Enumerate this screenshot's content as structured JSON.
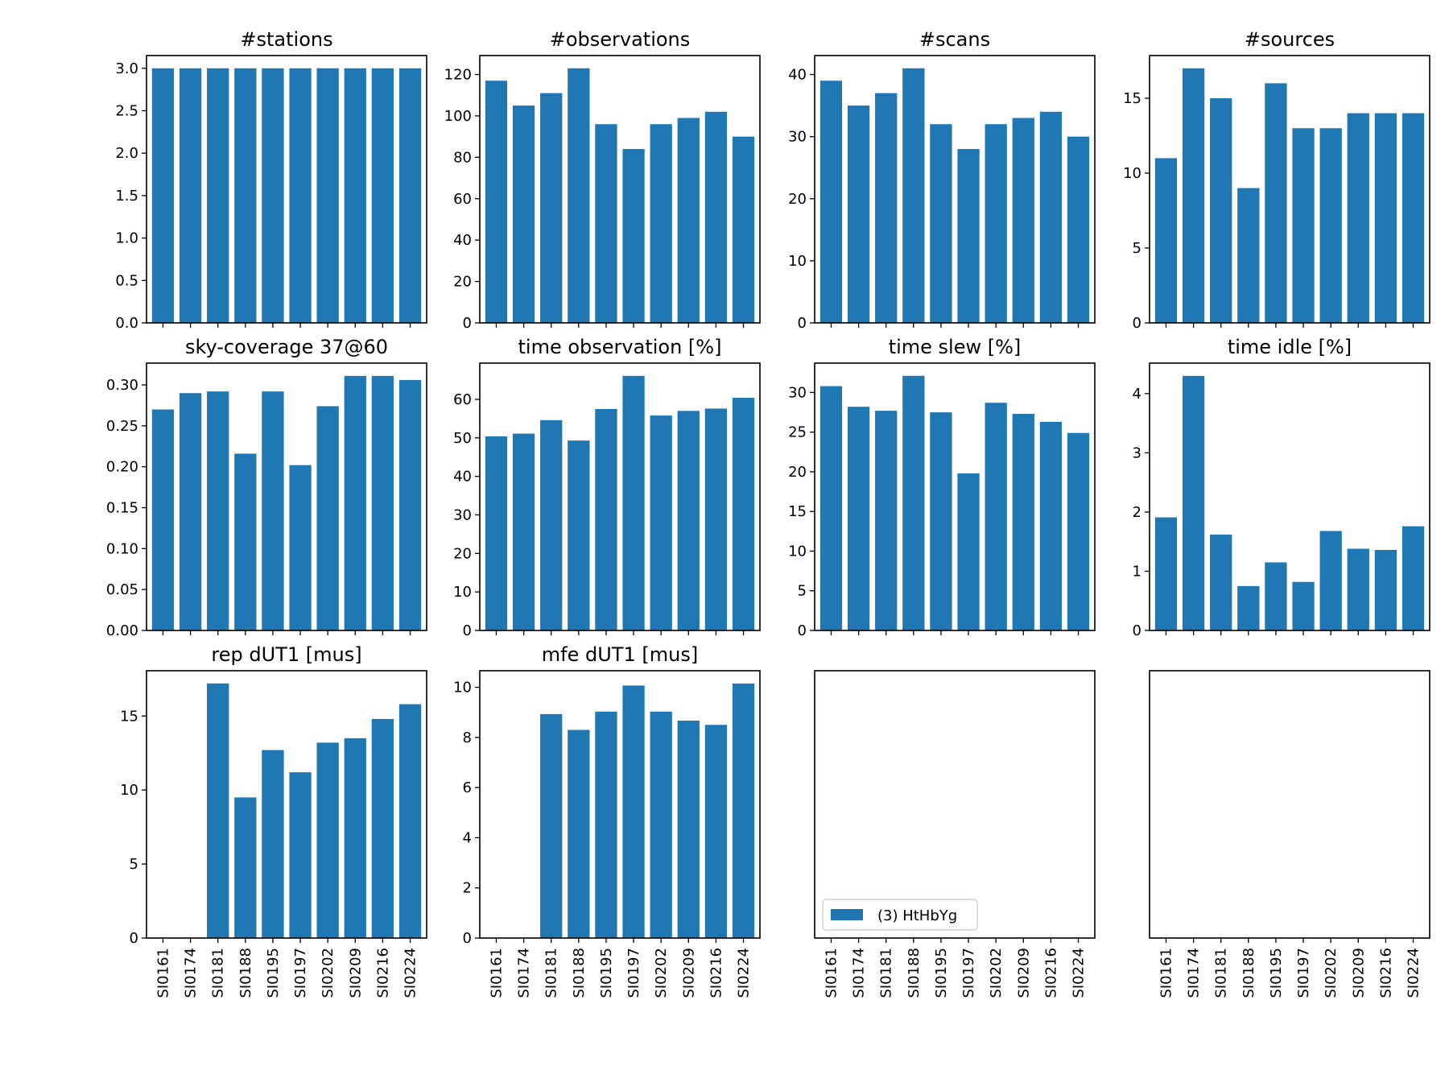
{
  "chart_data": {
    "type": "bar",
    "grid": false,
    "categories": [
      "SI0161",
      "SI0174",
      "SI0181",
      "SI0188",
      "SI0195",
      "SI0197",
      "SI0202",
      "SI0209",
      "SI0216",
      "SI0224"
    ],
    "bar_color": "#1f77b4",
    "legend": {
      "label": "(3) HtHbYg",
      "position": "lower-left",
      "panel": 10
    },
    "panels": [
      {
        "title": "#stations",
        "values": [
          3,
          3,
          3,
          3,
          3,
          3,
          3,
          3,
          3,
          3
        ],
        "ylim": [
          0,
          3.15
        ],
        "yticks": [
          0.0,
          0.5,
          1.0,
          1.5,
          2.0,
          2.5,
          3.0
        ],
        "decimals": 1
      },
      {
        "title": "#observations",
        "values": [
          117,
          105,
          111,
          123,
          96,
          84,
          96,
          99,
          102,
          90
        ],
        "ylim": [
          0,
          129.15
        ],
        "yticks": [
          0,
          20,
          40,
          60,
          80,
          100,
          120
        ],
        "decimals": 0
      },
      {
        "title": "#scans",
        "values": [
          39,
          35,
          37,
          41,
          32,
          28,
          32,
          33,
          34,
          30
        ],
        "ylim": [
          0,
          43.05
        ],
        "yticks": [
          0,
          10,
          20,
          30,
          40
        ],
        "decimals": 0
      },
      {
        "title": "#sources",
        "values": [
          11,
          17,
          15,
          9,
          16,
          13,
          13,
          14,
          14,
          14
        ],
        "ylim": [
          0,
          17.85
        ],
        "yticks": [
          0,
          5,
          10,
          15
        ],
        "decimals": 0
      },
      {
        "title": "sky-coverage 37@60",
        "values": [
          0.27,
          0.29,
          0.292,
          0.216,
          0.292,
          0.202,
          0.274,
          0.311,
          0.311,
          0.306
        ],
        "ylim": [
          0,
          0.3266
        ],
        "yticks": [
          0.0,
          0.05,
          0.1,
          0.15,
          0.2,
          0.25,
          0.3
        ],
        "decimals": 2
      },
      {
        "title": "time observation [%]",
        "values": [
          50.4,
          51.1,
          54.6,
          49.3,
          57.5,
          66.1,
          55.8,
          57.0,
          57.6,
          60.4
        ],
        "ylim": [
          0,
          69.4
        ],
        "yticks": [
          0,
          10,
          20,
          30,
          40,
          50,
          60
        ],
        "decimals": 0
      },
      {
        "title": "time slew [%]",
        "values": [
          30.8,
          28.2,
          27.7,
          32.1,
          27.5,
          19.8,
          28.7,
          27.3,
          26.3,
          24.9
        ],
        "ylim": [
          0,
          33.7
        ],
        "yticks": [
          0,
          5,
          10,
          15,
          20,
          25,
          30
        ],
        "decimals": 0
      },
      {
        "title": "time idle [%]",
        "values": [
          1.91,
          4.3,
          1.62,
          0.75,
          1.15,
          0.82,
          1.68,
          1.38,
          1.36,
          1.76
        ],
        "ylim": [
          0,
          4.515
        ],
        "yticks": [
          0,
          1,
          2,
          3,
          4
        ],
        "decimals": 0
      },
      {
        "title": "rep dUT1 [mus]",
        "values": [
          null,
          null,
          17.2,
          9.5,
          12.7,
          11.2,
          13.2,
          13.5,
          14.8,
          15.8
        ],
        "ylim": [
          0,
          18.06
        ],
        "yticks": [
          0,
          5,
          10,
          15
        ],
        "decimals": 0
      },
      {
        "title": "mfe dUT1 [mus]",
        "values": [
          null,
          null,
          8.93,
          8.3,
          9.03,
          10.07,
          9.03,
          8.67,
          8.5,
          10.15
        ],
        "ylim": [
          0,
          10.66
        ],
        "yticks": [
          0,
          2,
          4,
          6,
          8,
          10
        ],
        "decimals": 0
      },
      {
        "title": "",
        "values": [],
        "ylim": [
          0,
          1
        ],
        "yticks": [],
        "decimals": 0
      },
      {
        "title": "",
        "values": [],
        "ylim": [
          0,
          1
        ],
        "yticks": [],
        "decimals": 0
      }
    ]
  }
}
